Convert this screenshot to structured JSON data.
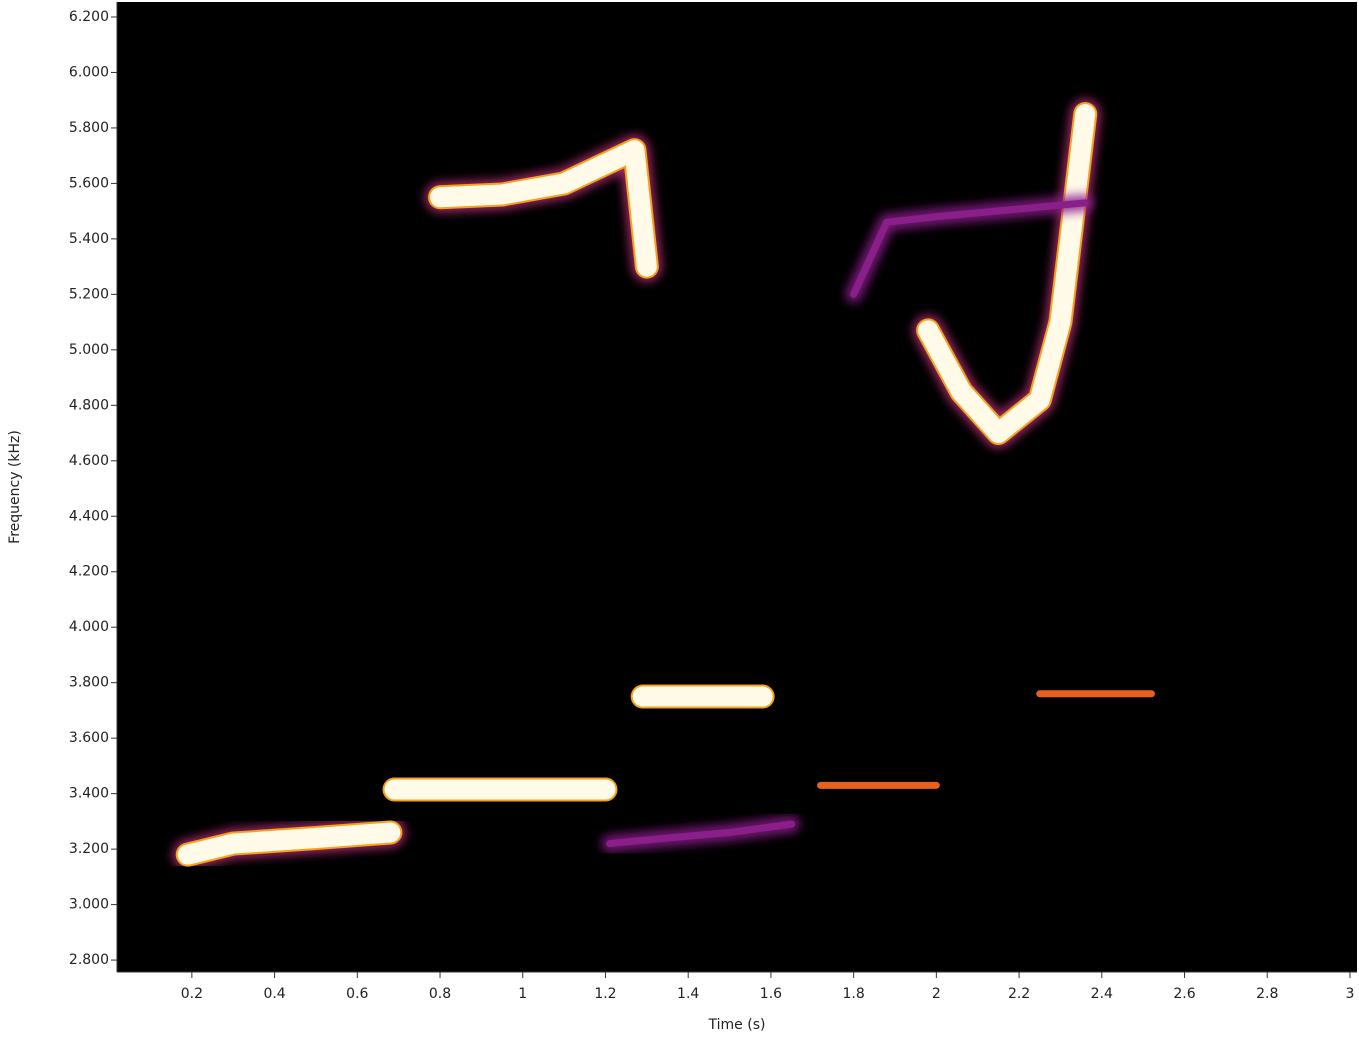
{
  "chart_data": {
    "type": "spectrogram",
    "x_label": "Time (s)",
    "y_label": "Frequency (kHz)",
    "xlim": [
      0.019,
      3.017
    ],
    "xticks": [
      0.2,
      0.4,
      0.6,
      0.8,
      1,
      1.2,
      1.4,
      1.6,
      1.8,
      2,
      2.2,
      2.4,
      2.6,
      2.8,
      3
    ],
    "ylim": [
      2.757,
      6.254
    ],
    "yticks": [
      {
        "value": 2.8,
        "label": "2.800"
      },
      {
        "value": 3.0,
        "label": "3.000"
      },
      {
        "value": 3.2,
        "label": "3.200"
      },
      {
        "value": 3.4,
        "label": "3.400"
      },
      {
        "value": 3.6,
        "label": "3.600"
      },
      {
        "value": 3.8,
        "label": "3.800"
      },
      {
        "value": 4.0,
        "label": "4.000"
      },
      {
        "value": 4.2,
        "label": "4.200"
      },
      {
        "value": 4.4,
        "label": "4.400"
      },
      {
        "value": 4.6,
        "label": "4.600"
      },
      {
        "value": 4.8,
        "label": "4.800"
      },
      {
        "value": 5.0,
        "label": "5.000"
      },
      {
        "value": 5.2,
        "label": "5.200"
      },
      {
        "value": 5.4,
        "label": "5.400"
      },
      {
        "value": 5.6,
        "label": "5.600"
      },
      {
        "value": 5.8,
        "label": "5.800"
      },
      {
        "value": 6.0,
        "label": "6.000"
      },
      {
        "value": 6.2,
        "label": "6.200"
      }
    ],
    "background": "#000000",
    "traces": [
      {
        "color": "#fffbe8",
        "x": [
          0.19,
          0.3,
          0.5,
          0.68
        ],
        "y": [
          3.18,
          3.22,
          3.24,
          3.26
        ]
      },
      {
        "color": "#fffbe8",
        "x": [
          0.69,
          1.2
        ],
        "y": [
          3.415,
          3.415
        ]
      },
      {
        "color": "#fffbe8",
        "x": [
          1.29,
          1.58
        ],
        "y": [
          3.75,
          3.75
        ]
      },
      {
        "color": "#fffbe8",
        "x": [
          0.8,
          0.95,
          1.1,
          1.27,
          1.3
        ],
        "y": [
          5.55,
          5.56,
          5.6,
          5.72,
          5.3
        ]
      },
      {
        "color": "#fffbe8",
        "x": [
          1.98,
          2.06,
          2.15,
          2.25,
          2.3,
          2.36
        ],
        "y": [
          5.07,
          4.85,
          4.7,
          4.82,
          5.1,
          5.85
        ]
      },
      {
        "color": "#e8601c",
        "x": [
          1.72,
          2.0
        ],
        "y": [
          3.43,
          3.43
        ]
      },
      {
        "color": "#e8601c",
        "x": [
          2.25,
          2.52
        ],
        "y": [
          3.76,
          3.76
        ]
      },
      {
        "color": "#8a1f8a",
        "x": [
          1.8,
          1.88,
          2.0,
          2.36
        ],
        "y": [
          5.2,
          5.46,
          5.48,
          5.53
        ]
      },
      {
        "color": "#8a1f8a",
        "x": [
          1.21,
          1.35,
          1.5,
          1.65
        ],
        "y": [
          3.22,
          3.24,
          3.26,
          3.29
        ]
      }
    ]
  }
}
